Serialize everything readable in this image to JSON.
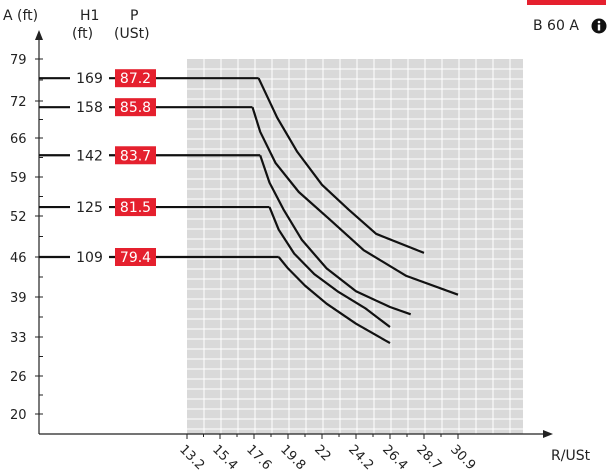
{
  "chart_data": {
    "type": "line",
    "badge": "B 60 A",
    "info_icon": "info-icon",
    "accent_color": "#e5202e",
    "y_axis_label": "A (ft)",
    "x_axis_label": "R/USt",
    "col_headers": {
      "h1": [
        "H1",
        "(ft)"
      ],
      "p": [
        "P",
        "(USt)"
      ]
    },
    "y_ticks": [
      "79",
      "72",
      "66",
      "59",
      "52",
      "46",
      "39",
      "33",
      "26",
      "20"
    ],
    "x_ticks": [
      "13.2",
      "15.4",
      "17.6",
      "19.8",
      "22",
      "24.2",
      "26.4",
      "28.7",
      "30.9"
    ],
    "series": [
      {
        "h1": "169",
        "p": "87.2",
        "a": 75.8,
        "points": [
          [
            17.9,
            75.8
          ],
          [
            19.1,
            69.3
          ],
          [
            20.4,
            63.5
          ],
          [
            22.0,
            57.6
          ],
          [
            23.7,
            53.2
          ],
          [
            25.5,
            49.4
          ],
          [
            28.7,
            46.6
          ]
        ]
      },
      {
        "h1": "158",
        "p": "85.8",
        "a": 71.0,
        "points": [
          [
            17.5,
            71.0
          ],
          [
            18.0,
            67.0
          ],
          [
            19.0,
            61.5
          ],
          [
            20.5,
            56.3
          ],
          [
            22.5,
            51.5
          ],
          [
            24.7,
            47.0
          ],
          [
            27.5,
            42.7
          ],
          [
            30.9,
            39.4
          ]
        ]
      },
      {
        "h1": "142",
        "p": "83.7",
        "a": 62.9,
        "points": [
          [
            18.0,
            62.9
          ],
          [
            18.6,
            58.0
          ],
          [
            19.5,
            53.2
          ],
          [
            20.7,
            48.5
          ],
          [
            22.3,
            44.0
          ],
          [
            24.2,
            40.0
          ],
          [
            26.4,
            37.5
          ],
          [
            27.8,
            36.4
          ]
        ]
      },
      {
        "h1": "125",
        "p": "81.5",
        "a": 53.6,
        "points": [
          [
            18.6,
            53.6
          ],
          [
            19.2,
            50.0
          ],
          [
            20.2,
            46.5
          ],
          [
            21.5,
            43.0
          ],
          [
            23.0,
            40.0
          ],
          [
            24.8,
            37.3
          ],
          [
            26.4,
            34.5
          ]
        ]
      },
      {
        "h1": "109",
        "p": "79.4",
        "a": 46.0,
        "points": [
          [
            19.2,
            46.0
          ],
          [
            19.8,
            44.0
          ],
          [
            20.9,
            41.0
          ],
          [
            22.3,
            38.0
          ],
          [
            24.2,
            35.0
          ],
          [
            26.4,
            31.9
          ]
        ]
      }
    ]
  }
}
